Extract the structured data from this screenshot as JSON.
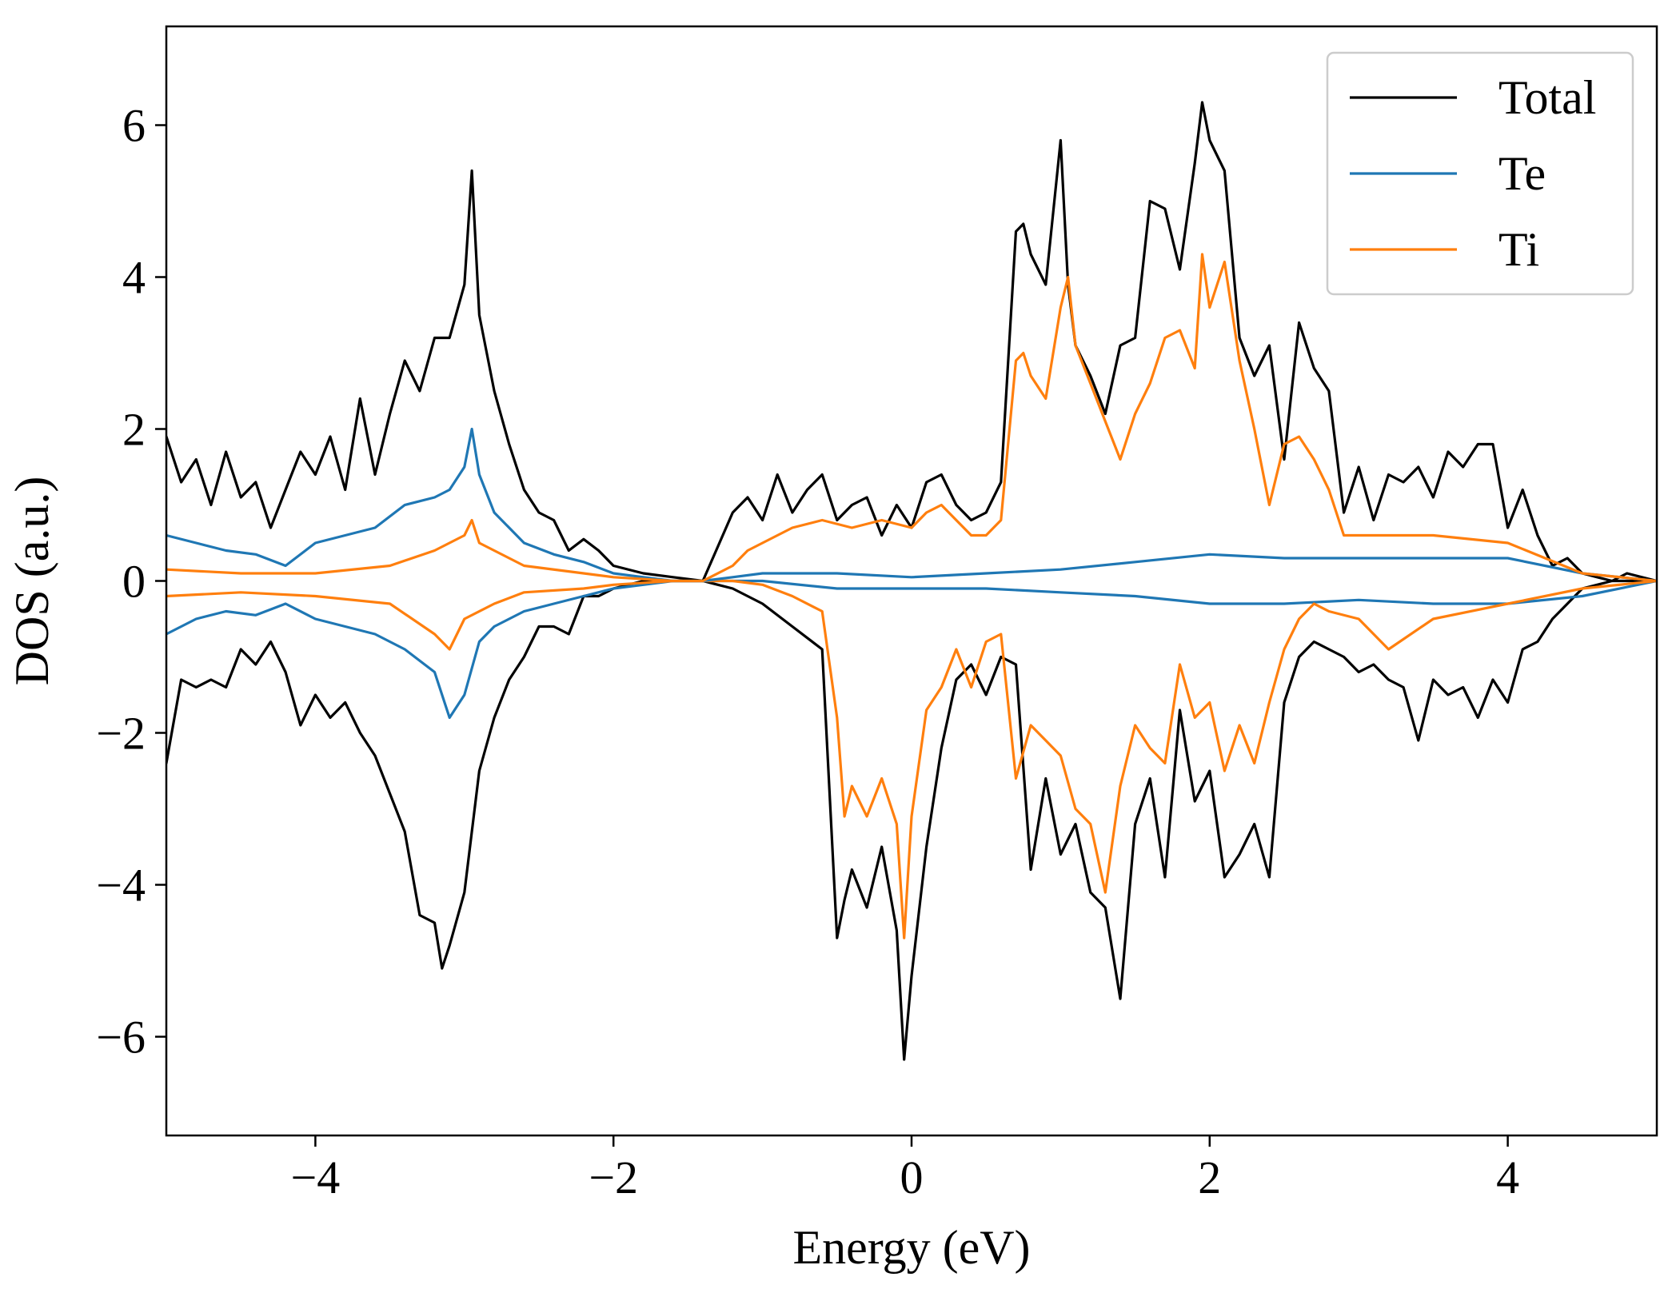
{
  "chart_data": {
    "type": "line",
    "xlabel": "Energy (eV)",
    "ylabel": "DOS (a.u.)",
    "xlim": [
      -5,
      5
    ],
    "ylim": [
      -7.3,
      7.3
    ],
    "xticks": [
      -4,
      -2,
      0,
      2,
      4
    ],
    "xtick_labels": [
      "−4",
      "−2",
      "0",
      "2",
      "4"
    ],
    "yticks": [
      -6,
      -4,
      -2,
      0,
      2,
      4,
      6
    ],
    "ytick_labels": [
      "−6",
      "−4",
      "−2",
      "0",
      "2",
      "4",
      "6"
    ],
    "grid": false,
    "legend_position": "top-right",
    "series": [
      {
        "name": "Total",
        "color": "#000000",
        "x": [
          -5,
          -4.9,
          -4.8,
          -4.7,
          -4.6,
          -4.5,
          -4.4,
          -4.3,
          -4.2,
          -4.1,
          -4,
          -3.9,
          -3.8,
          -3.7,
          -3.6,
          -3.5,
          -3.4,
          -3.3,
          -3.2,
          -3.1,
          -3,
          -2.95,
          -2.9,
          -2.8,
          -2.7,
          -2.6,
          -2.5,
          -2.4,
          -2.3,
          -2.2,
          -2.1,
          -2,
          -1.8,
          -1.6,
          -1.4,
          -1.2,
          -1.1,
          -1,
          -0.9,
          -0.8,
          -0.7,
          -0.6,
          -0.5,
          -0.4,
          -0.3,
          -0.2,
          -0.1,
          0,
          0.1,
          0.2,
          0.3,
          0.4,
          0.5,
          0.6,
          0.7,
          0.75,
          0.8,
          0.9,
          1,
          1.05,
          1.1,
          1.2,
          1.3,
          1.4,
          1.5,
          1.6,
          1.7,
          1.8,
          1.9,
          1.95,
          2,
          2.1,
          2.2,
          2.3,
          2.4,
          2.5,
          2.6,
          2.7,
          2.8,
          2.9,
          3,
          3.1,
          3.2,
          3.3,
          3.4,
          3.5,
          3.6,
          3.7,
          3.8,
          3.9,
          4,
          4.1,
          4.2,
          4.3,
          4.4,
          4.5,
          4.6,
          4.7,
          4.8,
          4.9,
          5
        ],
        "y": [
          1.9,
          1.3,
          1.6,
          1,
          1.7,
          1.1,
          1.3,
          0.7,
          1.2,
          1.7,
          1.4,
          1.9,
          1.2,
          2.4,
          1.4,
          2.2,
          2.9,
          2.5,
          3.2,
          3.2,
          3.9,
          5.4,
          3.5,
          2.5,
          1.8,
          1.2,
          0.9,
          0.8,
          0.4,
          0.55,
          0.4,
          0.2,
          0.1,
          0.05,
          0,
          0.9,
          1.1,
          0.8,
          1.4,
          0.9,
          1.2,
          1.4,
          0.8,
          1.0,
          1.1,
          0.6,
          1,
          0.7,
          1.3,
          1.4,
          1,
          0.8,
          0.9,
          1.3,
          4.6,
          4.7,
          4.3,
          3.9,
          5.8,
          3.9,
          3.1,
          2.7,
          2.2,
          3.1,
          3.2,
          5.0,
          4.9,
          4.1,
          5.5,
          6.3,
          5.8,
          5.4,
          3.2,
          2.7,
          3.1,
          1.6,
          3.4,
          2.8,
          2.5,
          0.9,
          1.5,
          0.8,
          1.4,
          1.3,
          1.5,
          1.1,
          1.7,
          1.5,
          1.8,
          1.8,
          0.7,
          1.2,
          0.6,
          0.2,
          0.3,
          0.1,
          0.05,
          0,
          0.1,
          0.05,
          0
        ]
      },
      {
        "name": "Te",
        "color": "#1f77b4",
        "x": [
          -5,
          -4.8,
          -4.6,
          -4.4,
          -4.2,
          -4,
          -3.8,
          -3.6,
          -3.4,
          -3.2,
          -3.1,
          -3,
          -2.95,
          -2.9,
          -2.8,
          -2.6,
          -2.4,
          -2.2,
          -2,
          -1.8,
          -1.6,
          -1.4,
          -1.2,
          -1,
          -0.5,
          0,
          0.5,
          1,
          1.5,
          2,
          2.5,
          3,
          3.5,
          4,
          4.5,
          5
        ],
        "y": [
          0.6,
          0.5,
          0.4,
          0.35,
          0.2,
          0.5,
          0.6,
          0.7,
          1,
          1.1,
          1.2,
          1.5,
          2.0,
          1.4,
          0.9,
          0.5,
          0.35,
          0.25,
          0.1,
          0.05,
          0,
          0,
          0.05,
          0.1,
          0.1,
          0.05,
          0.1,
          0.15,
          0.25,
          0.35,
          0.3,
          0.3,
          0.3,
          0.3,
          0.1,
          0
        ]
      },
      {
        "name": "Ti",
        "color": "#ff7f0e",
        "x": [
          -5,
          -4.5,
          -4,
          -3.5,
          -3.2,
          -3,
          -2.95,
          -2.9,
          -2.6,
          -2.2,
          -2,
          -1.6,
          -1.4,
          -1.2,
          -1.1,
          -1,
          -0.8,
          -0.6,
          -0.4,
          -0.2,
          0,
          0.1,
          0.2,
          0.3,
          0.4,
          0.5,
          0.6,
          0.7,
          0.75,
          0.8,
          0.9,
          1,
          1.05,
          1.1,
          1.2,
          1.3,
          1.4,
          1.5,
          1.6,
          1.7,
          1.8,
          1.9,
          1.95,
          2,
          2.1,
          2.2,
          2.3,
          2.4,
          2.5,
          2.6,
          2.7,
          2.8,
          2.9,
          3,
          3.5,
          4,
          4.5,
          5
        ],
        "y": [
          0.15,
          0.1,
          0.1,
          0.2,
          0.4,
          0.6,
          0.8,
          0.5,
          0.2,
          0.1,
          0.05,
          0,
          0,
          0.2,
          0.4,
          0.5,
          0.7,
          0.8,
          0.7,
          0.8,
          0.7,
          0.9,
          1.0,
          0.8,
          0.6,
          0.6,
          0.8,
          2.9,
          3.0,
          2.7,
          2.4,
          3.6,
          4.0,
          3.1,
          2.6,
          2.1,
          1.6,
          2.2,
          2.6,
          3.2,
          3.3,
          2.8,
          4.3,
          3.6,
          4.2,
          2.9,
          2.0,
          1.0,
          1.8,
          1.9,
          1.6,
          1.2,
          0.6,
          0.6,
          0.6,
          0.5,
          0.1,
          0
        ]
      }
    ],
    "series_neg": [
      {
        "name": "Total",
        "color": "#000000",
        "x": [
          -5,
          -4.9,
          -4.8,
          -4.7,
          -4.6,
          -4.5,
          -4.4,
          -4.3,
          -4.2,
          -4.1,
          -4,
          -3.9,
          -3.8,
          -3.7,
          -3.6,
          -3.5,
          -3.4,
          -3.3,
          -3.2,
          -3.15,
          -3.1,
          -3,
          -2.9,
          -2.8,
          -2.7,
          -2.6,
          -2.5,
          -2.4,
          -2.3,
          -2.2,
          -2.1,
          -2,
          -1.8,
          -1.6,
          -1.4,
          -1.2,
          -1,
          -0.8,
          -0.6,
          -0.5,
          -0.45,
          -0.4,
          -0.3,
          -0.2,
          -0.1,
          -0.05,
          0,
          0.1,
          0.2,
          0.3,
          0.4,
          0.5,
          0.6,
          0.7,
          0.8,
          0.9,
          1,
          1.1,
          1.2,
          1.3,
          1.4,
          1.5,
          1.6,
          1.7,
          1.8,
          1.9,
          2,
          2.1,
          2.2,
          2.3,
          2.4,
          2.5,
          2.6,
          2.7,
          2.8,
          2.9,
          3,
          3.1,
          3.2,
          3.3,
          3.4,
          3.5,
          3.6,
          3.7,
          3.8,
          3.9,
          4,
          4.1,
          4.2,
          4.3,
          4.4,
          4.5,
          4.6,
          4.7,
          4.8,
          4.9,
          5
        ],
        "y": [
          -2.4,
          -1.3,
          -1.4,
          -1.3,
          -1.4,
          -0.9,
          -1.1,
          -0.8,
          -1.2,
          -1.9,
          -1.5,
          -1.8,
          -1.6,
          -2.0,
          -2.3,
          -2.8,
          -3.3,
          -4.4,
          -4.5,
          -5.1,
          -4.8,
          -4.1,
          -2.5,
          -1.8,
          -1.3,
          -1.0,
          -0.6,
          -0.6,
          -0.7,
          -0.2,
          -0.2,
          -0.1,
          0,
          0,
          0,
          -0.1,
          -0.3,
          -0.6,
          -0.9,
          -4.7,
          -4.2,
          -3.8,
          -4.3,
          -3.5,
          -4.6,
          -6.3,
          -5.2,
          -3.5,
          -2.2,
          -1.3,
          -1.1,
          -1.5,
          -1.0,
          -1.1,
          -3.8,
          -2.6,
          -3.6,
          -3.2,
          -4.1,
          -4.3,
          -5.5,
          -3.2,
          -2.6,
          -3.9,
          -1.7,
          -2.9,
          -2.5,
          -3.9,
          -3.6,
          -3.2,
          -3.9,
          -1.6,
          -1.0,
          -0.8,
          -0.9,
          -1.0,
          -1.2,
          -1.1,
          -1.3,
          -1.4,
          -2.1,
          -1.3,
          -1.5,
          -1.4,
          -1.8,
          -1.3,
          -1.6,
          -0.9,
          -0.8,
          -0.5,
          -0.3,
          -0.1,
          -0.05,
          0,
          0,
          0,
          0
        ]
      },
      {
        "name": "Te",
        "color": "#1f77b4",
        "x": [
          -5,
          -4.8,
          -4.6,
          -4.4,
          -4.2,
          -4,
          -3.8,
          -3.6,
          -3.4,
          -3.2,
          -3.1,
          -3,
          -2.9,
          -2.8,
          -2.6,
          -2.4,
          -2.2,
          -2,
          -1.8,
          -1.6,
          -1.4,
          -1.2,
          -1,
          -0.5,
          0,
          0.5,
          1,
          1.5,
          2,
          2.5,
          3,
          3.5,
          4,
          4.5,
          5
        ],
        "y": [
          -0.7,
          -0.5,
          -0.4,
          -0.45,
          -0.3,
          -0.5,
          -0.6,
          -0.7,
          -0.9,
          -1.2,
          -1.8,
          -1.5,
          -0.8,
          -0.6,
          -0.4,
          -0.3,
          -0.2,
          -0.1,
          -0.05,
          0,
          0,
          0,
          0,
          -0.1,
          -0.1,
          -0.1,
          -0.15,
          -0.2,
          -0.3,
          -0.3,
          -0.25,
          -0.3,
          -0.3,
          -0.2,
          0
        ]
      },
      {
        "name": "Ti",
        "color": "#ff7f0e",
        "x": [
          -5,
          -4.5,
          -4,
          -3.5,
          -3.2,
          -3.1,
          -3,
          -2.8,
          -2.6,
          -2.2,
          -2,
          -1.6,
          -1.4,
          -1.2,
          -1,
          -0.8,
          -0.6,
          -0.5,
          -0.45,
          -0.4,
          -0.3,
          -0.2,
          -0.1,
          -0.05,
          0,
          0.1,
          0.2,
          0.3,
          0.4,
          0.5,
          0.6,
          0.7,
          0.8,
          0.9,
          1,
          1.1,
          1.2,
          1.3,
          1.4,
          1.5,
          1.6,
          1.7,
          1.8,
          1.9,
          2,
          2.1,
          2.2,
          2.3,
          2.4,
          2.5,
          2.6,
          2.7,
          2.8,
          3,
          3.2,
          3.5,
          4,
          4.5,
          5
        ],
        "y": [
          -0.2,
          -0.15,
          -0.2,
          -0.3,
          -0.7,
          -0.9,
          -0.5,
          -0.3,
          -0.15,
          -0.1,
          -0.05,
          0,
          0,
          0,
          -0.05,
          -0.2,
          -0.4,
          -1.8,
          -3.1,
          -2.7,
          -3.1,
          -2.6,
          -3.2,
          -4.7,
          -3.1,
          -1.7,
          -1.4,
          -0.9,
          -1.4,
          -0.8,
          -0.7,
          -2.6,
          -1.9,
          -2.1,
          -2.3,
          -3.0,
          -3.2,
          -4.1,
          -2.7,
          -1.9,
          -2.2,
          -2.4,
          -1.1,
          -1.8,
          -1.6,
          -2.5,
          -1.9,
          -2.4,
          -1.6,
          -0.9,
          -0.5,
          -0.3,
          -0.4,
          -0.5,
          -0.9,
          -0.5,
          -0.3,
          -0.1,
          0
        ]
      }
    ]
  }
}
